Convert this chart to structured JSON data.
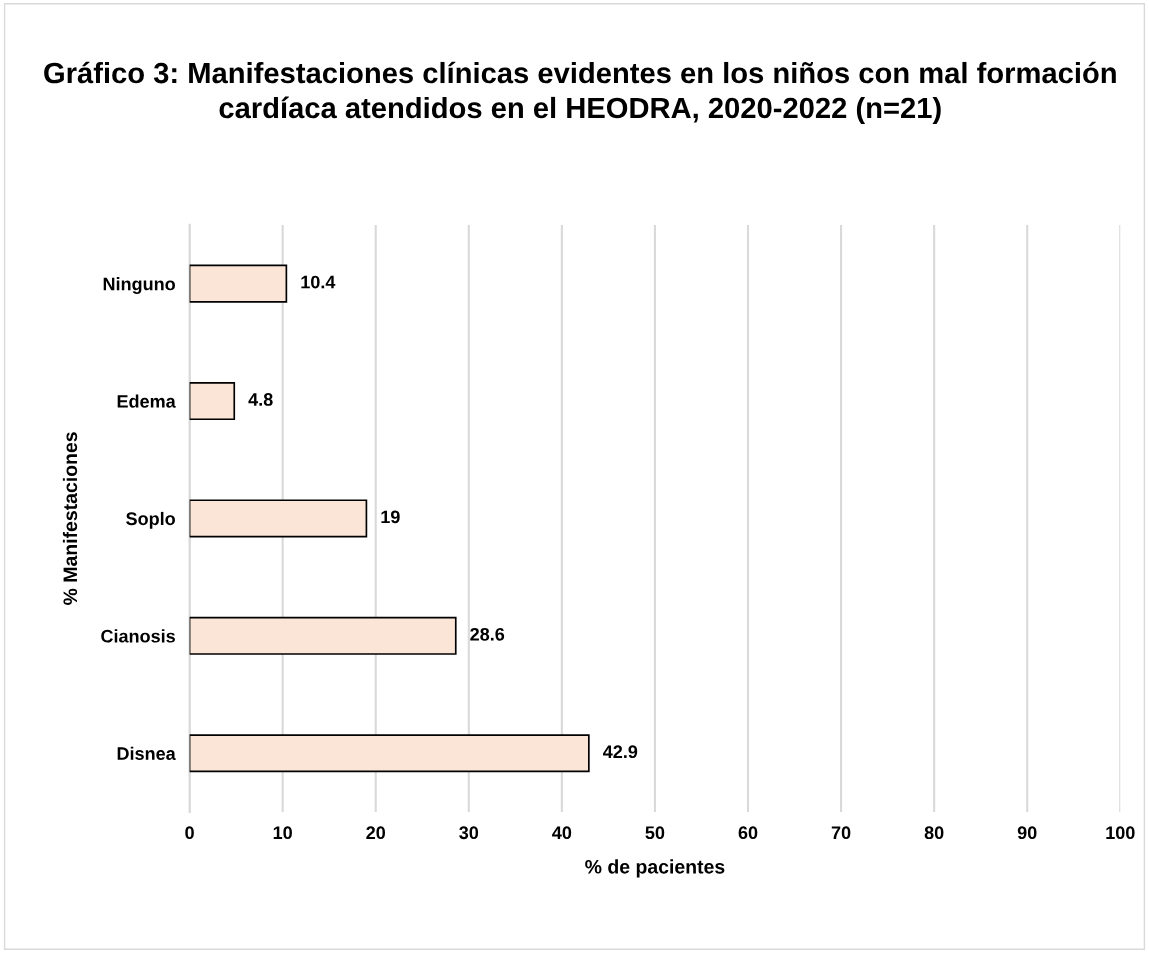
{
  "chart_data": {
    "type": "bar",
    "orientation": "horizontal",
    "title": "Gráfico 3: Manifestaciones clínicas evidentes en los niños con mal formación cardíaca atendidos en el HEODRA, 2020-2022 (n=21)",
    "xlabel": "% de pacientes",
    "ylabel": "% Manifestaciones",
    "categories": [
      "Ninguno",
      "Edema",
      "Soplo",
      "Cianosis",
      "Disnea"
    ],
    "values": [
      10.4,
      4.8,
      19,
      28.6,
      42.9
    ],
    "color": "#fbe5d6",
    "xlim": [
      0,
      100
    ],
    "xticks": [
      0,
      10,
      20,
      30,
      40,
      50,
      60,
      70,
      80,
      90,
      100
    ],
    "grid": "x",
    "data_labels": true
  }
}
